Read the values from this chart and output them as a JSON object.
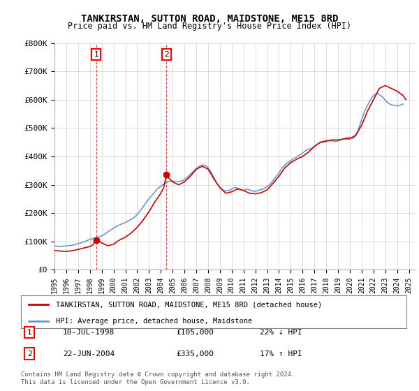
{
  "title": "TANKIRSTAN, SUTTON ROAD, MAIDSTONE, ME15 8RD",
  "subtitle": "Price paid vs. HM Land Registry's House Price Index (HPI)",
  "ylabel_ticks": [
    "£0",
    "£100K",
    "£200K",
    "£300K",
    "£400K",
    "£500K",
    "£600K",
    "£700K",
    "£800K"
  ],
  "ytick_values": [
    0,
    100000,
    200000,
    300000,
    400000,
    500000,
    600000,
    700000,
    800000
  ],
  "ylim": [
    0,
    800000
  ],
  "xlim_start": 1995.0,
  "xlim_end": 2025.5,
  "transactions": [
    {
      "num": 1,
      "date": "10-JUL-1998",
      "price": 105000,
      "pct": "22%",
      "dir": "↓",
      "year": 1998.53
    },
    {
      "num": 2,
      "date": "22-JUN-2004",
      "price": 335000,
      "pct": "17%",
      "dir": "↑",
      "year": 2004.47
    }
  ],
  "hpi_line_color": "#6699cc",
  "price_line_color": "#cc0000",
  "marker_color": "#cc0000",
  "dashed_line_color": "#cc0000",
  "background_color": "#ffffff",
  "grid_color": "#cccccc",
  "legend_label_red": "TANKIRSTAN, SUTTON ROAD, MAIDSTONE, ME15 8RD (detached house)",
  "legend_label_blue": "HPI: Average price, detached house, Maidstone",
  "footer": "Contains HM Land Registry data © Crown copyright and database right 2024.\nThis data is licensed under the Open Government Licence v3.0.",
  "hpi_data": {
    "years": [
      1995.0,
      1995.25,
      1995.5,
      1995.75,
      1996.0,
      1996.25,
      1996.5,
      1996.75,
      1997.0,
      1997.25,
      1997.5,
      1997.75,
      1998.0,
      1998.25,
      1998.5,
      1998.75,
      1999.0,
      1999.25,
      1999.5,
      1999.75,
      2000.0,
      2000.25,
      2000.5,
      2000.75,
      2001.0,
      2001.25,
      2001.5,
      2001.75,
      2002.0,
      2002.25,
      2002.5,
      2002.75,
      2003.0,
      2003.25,
      2003.5,
      2003.75,
      2004.0,
      2004.25,
      2004.5,
      2004.75,
      2005.0,
      2005.25,
      2005.5,
      2005.75,
      2006.0,
      2006.25,
      2006.5,
      2006.75,
      2007.0,
      2007.25,
      2007.5,
      2007.75,
      2008.0,
      2008.25,
      2008.5,
      2008.75,
      2009.0,
      2009.25,
      2009.5,
      2009.75,
      2010.0,
      2010.25,
      2010.5,
      2010.75,
      2011.0,
      2011.25,
      2011.5,
      2011.75,
      2012.0,
      2012.25,
      2012.5,
      2012.75,
      2013.0,
      2013.25,
      2013.5,
      2013.75,
      2014.0,
      2014.25,
      2014.5,
      2014.75,
      2015.0,
      2015.25,
      2015.5,
      2015.75,
      2016.0,
      2016.25,
      2016.5,
      2016.75,
      2017.0,
      2017.25,
      2017.5,
      2017.75,
      2018.0,
      2018.25,
      2018.5,
      2018.75,
      2019.0,
      2019.25,
      2019.5,
      2019.75,
      2020.0,
      2020.25,
      2020.5,
      2020.75,
      2021.0,
      2021.25,
      2021.5,
      2021.75,
      2022.0,
      2022.25,
      2022.5,
      2022.75,
      2023.0,
      2023.25,
      2023.5,
      2023.75,
      2024.0,
      2024.25,
      2024.5
    ],
    "values": [
      85000,
      83000,
      82000,
      83000,
      84000,
      85000,
      87000,
      89000,
      92000,
      95000,
      99000,
      103000,
      107000,
      110000,
      113000,
      116000,
      120000,
      126000,
      133000,
      140000,
      147000,
      153000,
      158000,
      163000,
      167000,
      172000,
      178000,
      185000,
      195000,
      208000,
      222000,
      237000,
      250000,
      263000,
      275000,
      287000,
      295000,
      302000,
      308000,
      312000,
      313000,
      312000,
      311000,
      313000,
      318000,
      327000,
      337000,
      347000,
      357000,
      365000,
      370000,
      368000,
      360000,
      345000,
      325000,
      305000,
      290000,
      282000,
      278000,
      280000,
      285000,
      290000,
      288000,
      283000,
      280000,
      285000,
      282000,
      278000,
      277000,
      280000,
      283000,
      287000,
      293000,
      302000,
      315000,
      328000,
      342000,
      358000,
      370000,
      378000,
      385000,
      392000,
      398000,
      405000,
      412000,
      420000,
      425000,
      428000,
      435000,
      443000,
      448000,
      450000,
      452000,
      455000,
      455000,
      453000,
      455000,
      458000,
      462000,
      467000,
      468000,
      463000,
      472000,
      498000,
      530000,
      560000,
      580000,
      600000,
      615000,
      622000,
      618000,
      610000,
      598000,
      588000,
      582000,
      580000,
      578000,
      580000,
      585000
    ]
  },
  "price_data": {
    "years": [
      1995.0,
      1995.5,
      1996.0,
      1996.5,
      1997.0,
      1997.5,
      1998.0,
      1998.25,
      1998.53,
      1999.0,
      1999.5,
      2000.0,
      2000.5,
      2001.0,
      2001.5,
      2002.0,
      2002.5,
      2003.0,
      2003.5,
      2004.0,
      2004.25,
      2004.47,
      2004.75,
      2005.0,
      2005.5,
      2006.0,
      2006.5,
      2007.0,
      2007.5,
      2008.0,
      2008.5,
      2009.0,
      2009.5,
      2010.0,
      2010.5,
      2011.0,
      2011.5,
      2012.0,
      2012.5,
      2013.0,
      2013.5,
      2014.0,
      2014.5,
      2015.0,
      2015.5,
      2016.0,
      2016.5,
      2017.0,
      2017.5,
      2018.0,
      2018.5,
      2019.0,
      2019.5,
      2020.0,
      2020.5,
      2021.0,
      2021.5,
      2022.0,
      2022.5,
      2023.0,
      2023.5,
      2024.0,
      2024.5,
      2024.75
    ],
    "values": [
      68000,
      66000,
      65000,
      67000,
      72000,
      77000,
      82000,
      88000,
      105000,
      95000,
      85000,
      90000,
      105000,
      115000,
      130000,
      150000,
      175000,
      205000,
      240000,
      270000,
      290000,
      335000,
      320000,
      310000,
      300000,
      310000,
      330000,
      355000,
      365000,
      355000,
      320000,
      290000,
      270000,
      275000,
      285000,
      280000,
      270000,
      268000,
      272000,
      282000,
      305000,
      330000,
      360000,
      378000,
      390000,
      400000,
      415000,
      435000,
      450000,
      455000,
      458000,
      458000,
      462000,
      462000,
      475000,
      510000,
      560000,
      600000,
      640000,
      650000,
      640000,
      630000,
      615000,
      600000
    ]
  }
}
